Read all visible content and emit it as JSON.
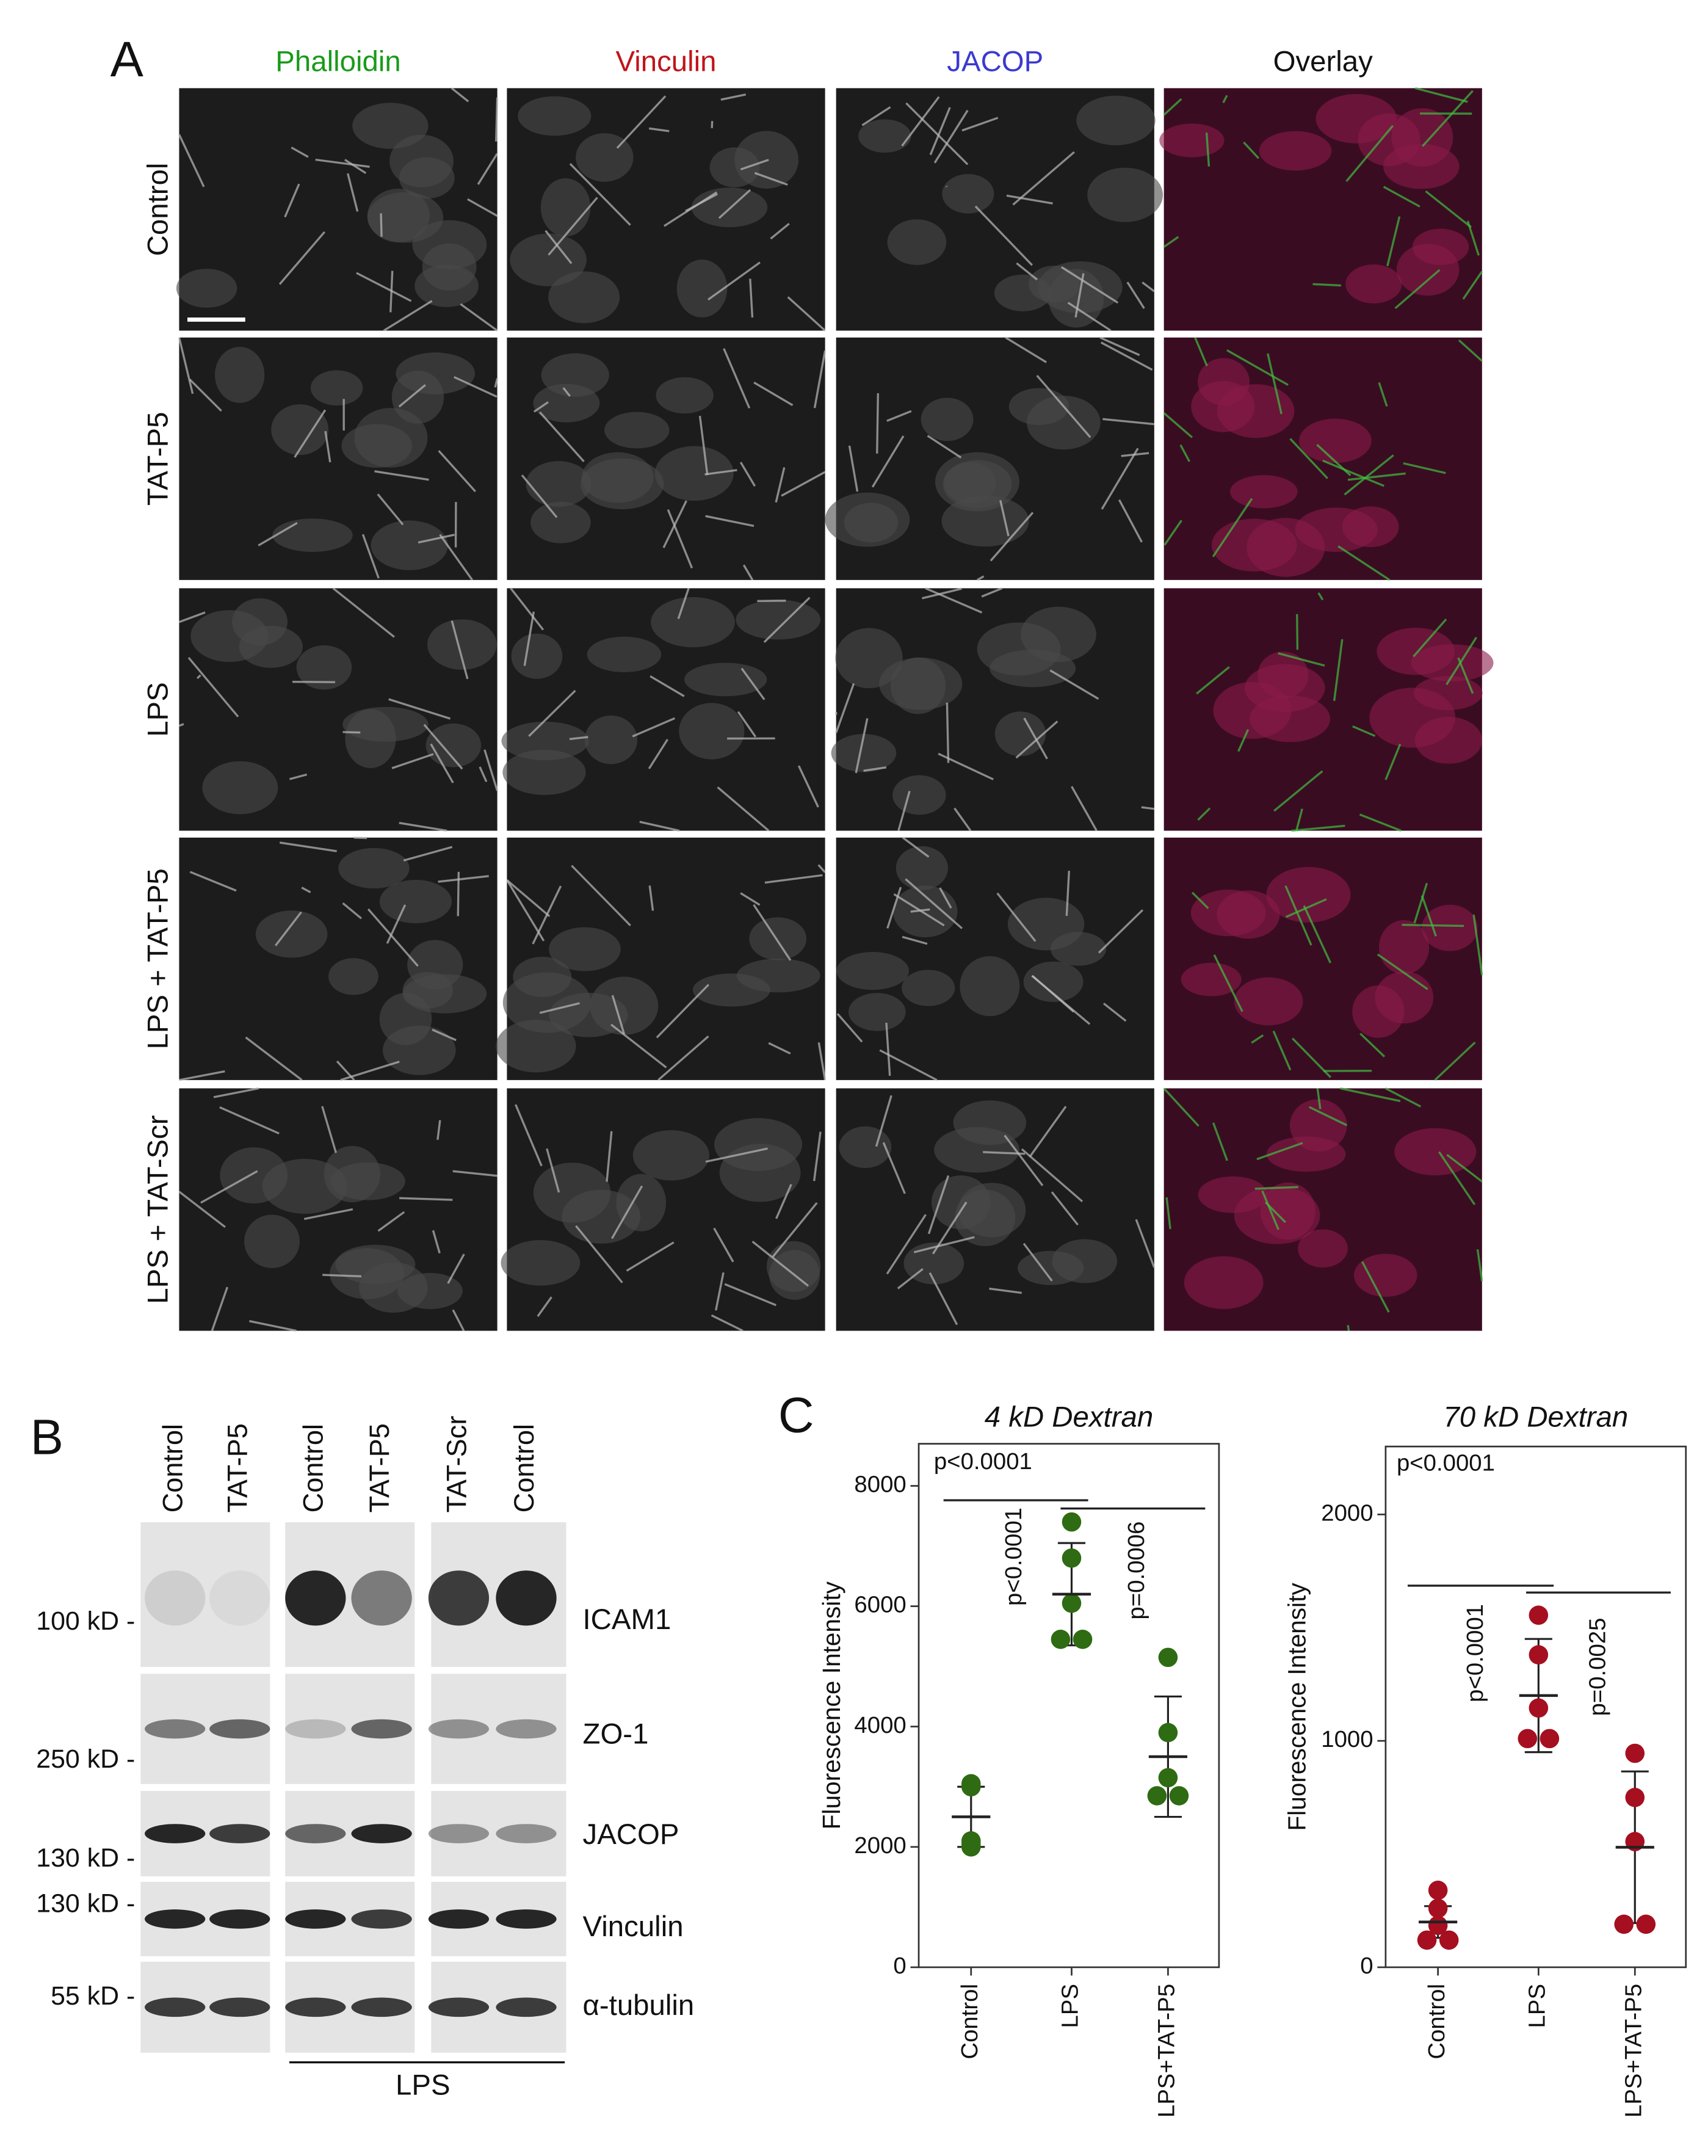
{
  "panel_a": {
    "letter": "A",
    "columns": [
      "Phalloidin",
      "Vinculin",
      "JACOP",
      "Overlay"
    ],
    "rows": [
      "Control",
      "TAT-P5",
      "LPS",
      "LPS + TAT-P5",
      "LPS + TAT-Scr"
    ]
  },
  "panel_b": {
    "letter": "B",
    "lanes": [
      "Control",
      "TAT-P5",
      "Control",
      "TAT-P5",
      "TAT-Scr",
      "Control"
    ],
    "markers": [
      "100 kD -",
      "250 kD -",
      "130 kD -",
      "130 kD -",
      "55 kD -"
    ],
    "proteins": [
      "ICAM1",
      "ZO-1",
      "JACOP",
      "Vinculin",
      "α-tubulin"
    ],
    "group_label": "LPS"
  },
  "panel_c": {
    "letter": "C"
  },
  "chart_data": [
    {
      "type": "scatter",
      "title": "4 kD Dextran",
      "ylabel": "Fluorescence Intensity",
      "categories": [
        "Control",
        "LPS",
        "LPS+TAT-P5"
      ],
      "values": [
        [
          3050,
          3000,
          2100,
          2000,
          2050
        ],
        [
          7400,
          6800,
          6050,
          5450,
          5450
        ],
        [
          5150,
          3900,
          3150,
          2850,
          2850
        ]
      ],
      "means": [
        2500,
        6200,
        3500
      ],
      "sd": [
        500,
        850,
        1000
      ],
      "color": "#2e6b12",
      "ylim": [
        0,
        8700
      ],
      "yticks": [
        0,
        2000,
        4000,
        6000,
        8000
      ],
      "annotations": [
        "p<0.0001",
        "p<0.0001",
        "p=0.0006"
      ]
    },
    {
      "type": "scatter",
      "title": "70 kD Dextran",
      "ylabel": "Fluorescence Intensity",
      "categories": [
        "Control",
        "LPS",
        "LPS+TAT-P5"
      ],
      "values": [
        [
          340,
          260,
          185,
          120,
          120
        ],
        [
          1555,
          1380,
          1145,
          1010,
          1010
        ],
        [
          945,
          750,
          555,
          190,
          190
        ]
      ],
      "means": [
        200,
        1200,
        530
      ],
      "sd": [
        70,
        250,
        335
      ],
      "color": "#a50f1f",
      "ylim": [
        0,
        2300
      ],
      "yticks": [
        0,
        1000,
        2000
      ],
      "annotations": [
        "p<0.0001",
        "p<0.0001",
        "p=0.0025"
      ]
    }
  ]
}
